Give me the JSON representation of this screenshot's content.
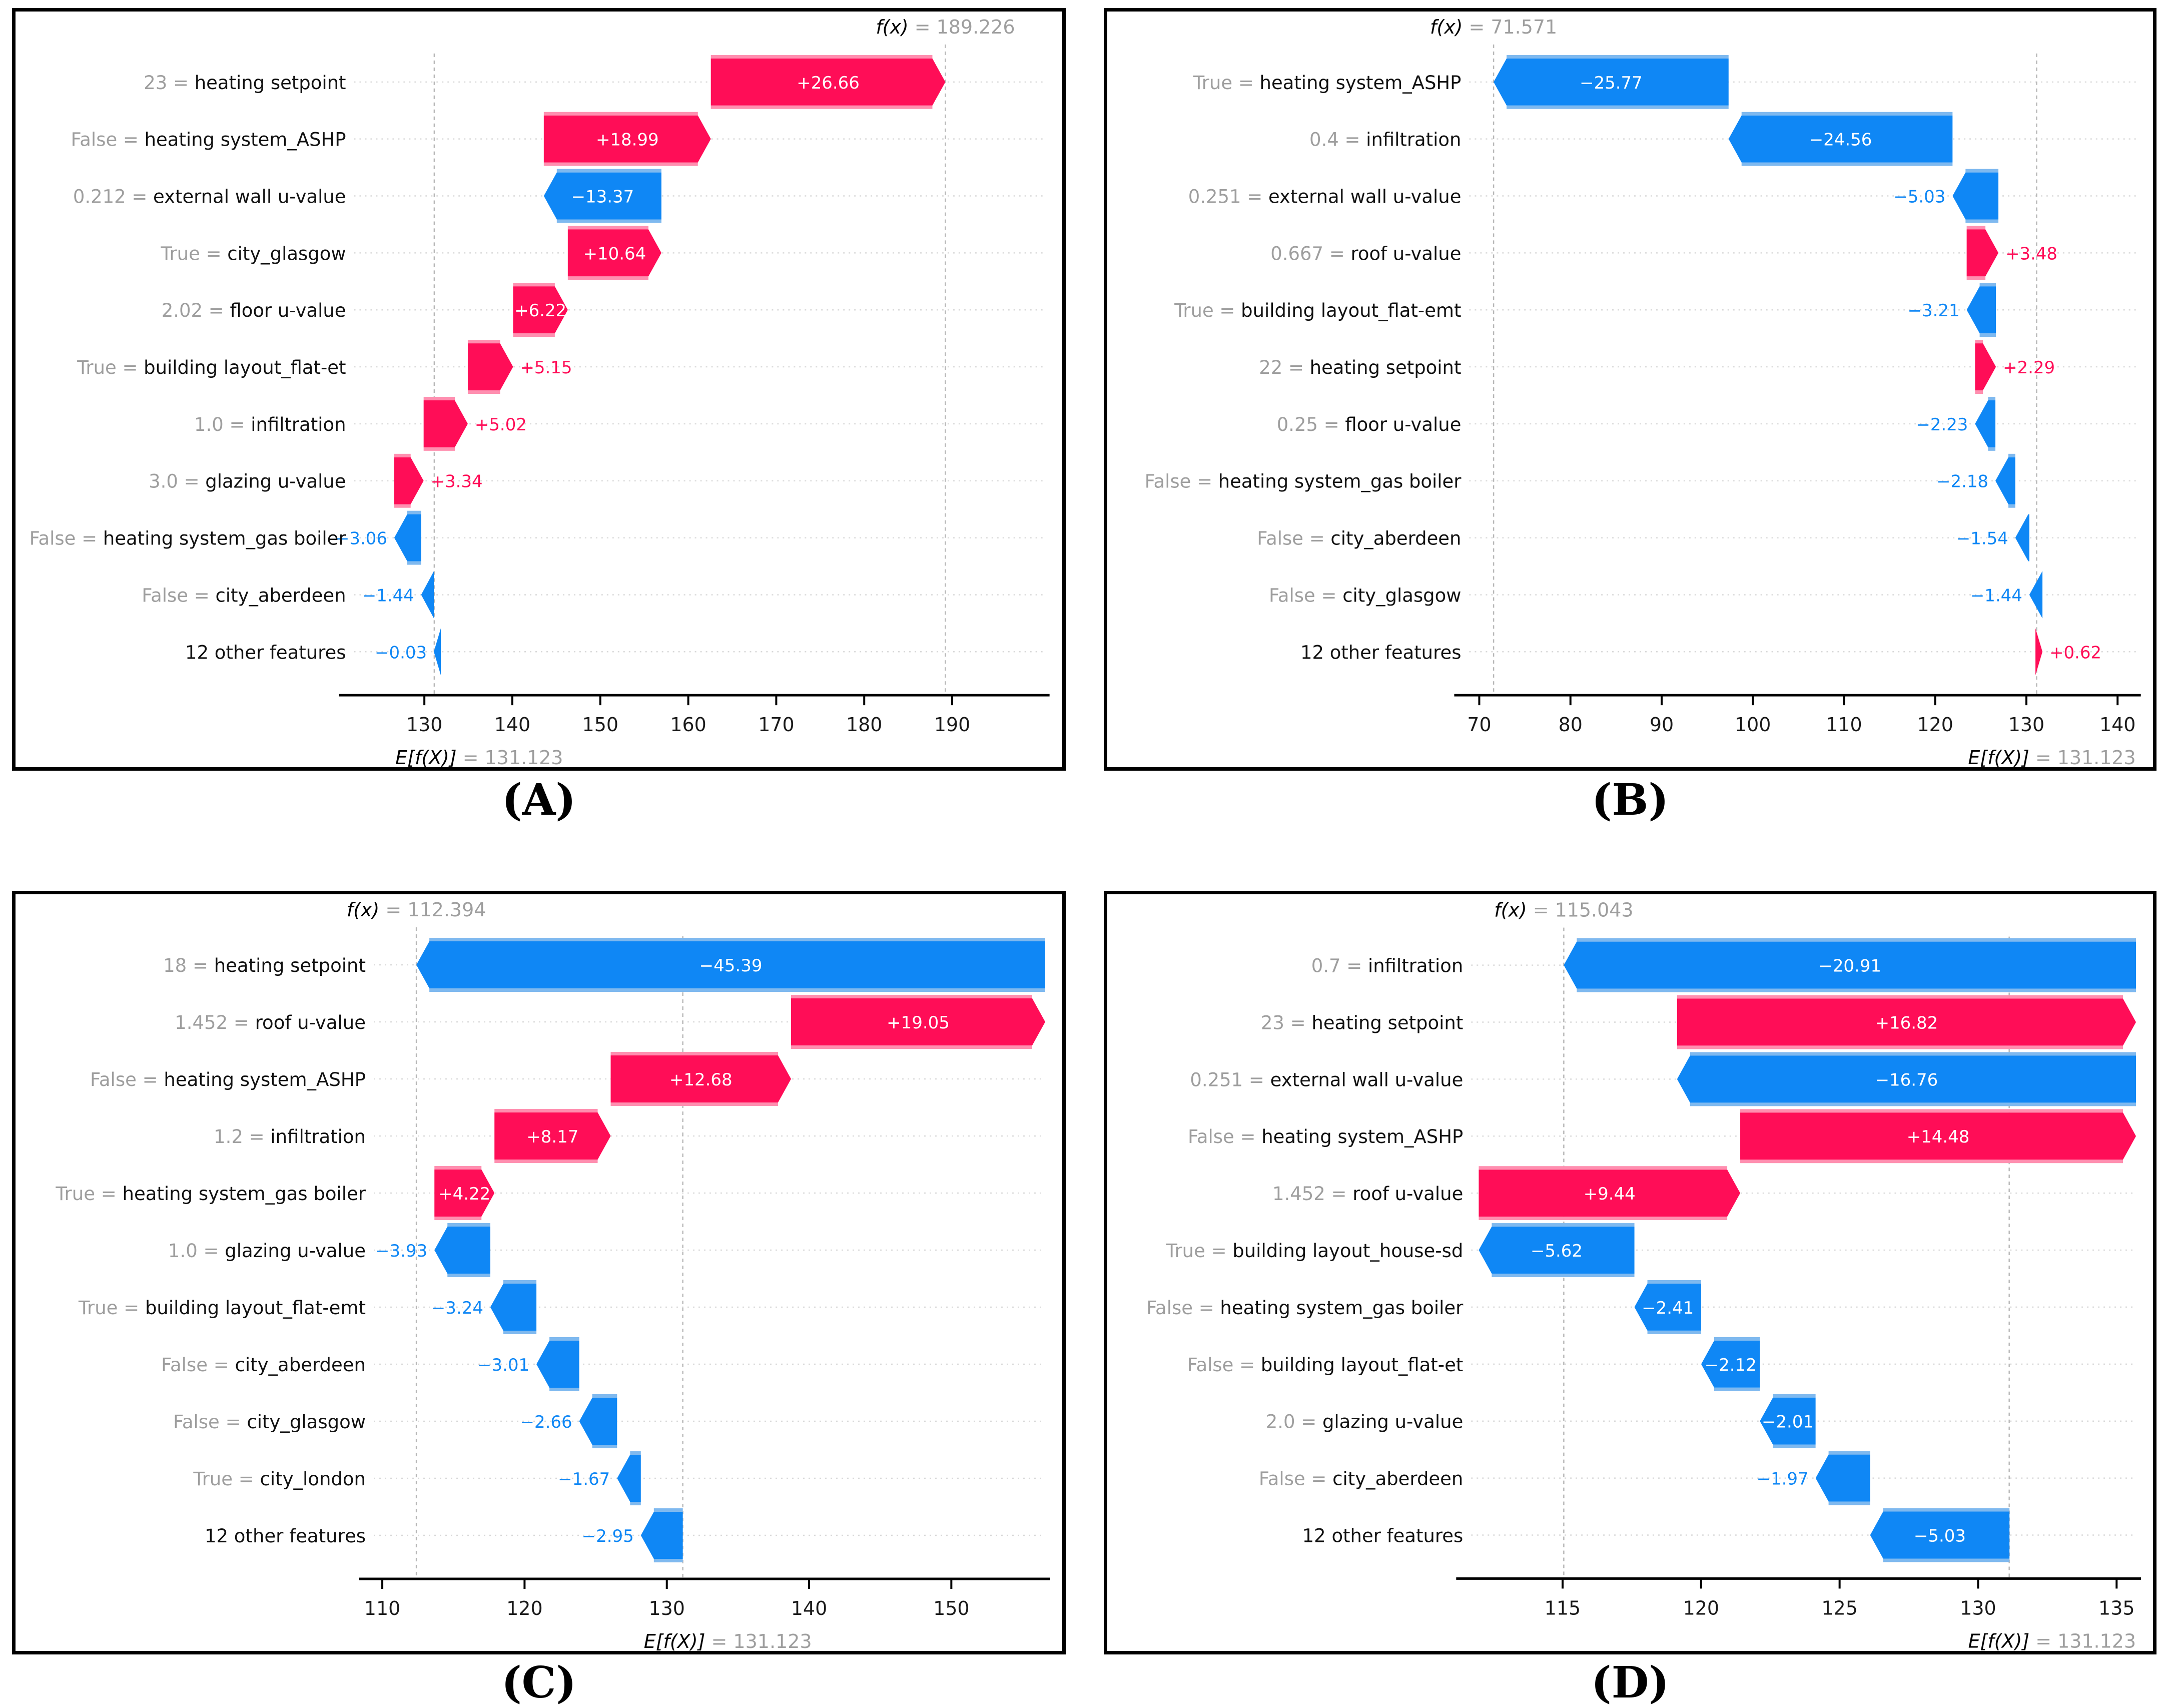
{
  "colors": {
    "positive": "#ff0d57",
    "negative": "#0f87f5",
    "positive_cap": "#ff8fb0",
    "negative_cap": "#7fb9ef",
    "grid": "#d9d9d9",
    "dash": "#b8b8b8",
    "muted": "#9e9e9e",
    "text": "#111111",
    "axis": "#000000",
    "inside_label": "#ffffff"
  },
  "chart_data": [
    {
      "type": "bar",
      "subtype": "shap-waterfall",
      "panel": "A",
      "caption": "(A)",
      "fx_text": "f(x)",
      "eq_text": " = ",
      "fx_value": "189.226",
      "fx": 189.226,
      "ef_text": "E[f(X)]",
      "ef_value": "131.123",
      "expected_value": 131.123,
      "x_ticks": [
        130,
        140,
        150,
        160,
        170,
        180,
        190
      ],
      "x_domain": [
        122,
        200.5
      ],
      "plot_left": 676,
      "ef_anchor": "line",
      "rows": [
        {
          "value": "23",
          "name": "heating setpoint",
          "shap": 26.66,
          "label": "+26.66",
          "inside": true
        },
        {
          "value": "False",
          "name": "heating system_ASHP",
          "shap": 18.99,
          "label": "+18.99",
          "inside": true
        },
        {
          "value": "0.212",
          "name": "external wall u-value",
          "shap": -13.37,
          "label": "−13.37",
          "inside": true
        },
        {
          "value": "True",
          "name": "city_glasgow",
          "shap": 10.64,
          "label": "+10.64",
          "inside": true
        },
        {
          "value": "2.02",
          "name": "floor u-value",
          "shap": 6.22,
          "label": "+6.22",
          "inside": true
        },
        {
          "value": "True",
          "name": "building layout_flat-et",
          "shap": 5.15,
          "label": "+5.15",
          "inside": false
        },
        {
          "value": "1.0",
          "name": "infiltration",
          "shap": 5.02,
          "label": "+5.02",
          "inside": false
        },
        {
          "value": "3.0",
          "name": "glazing u-value",
          "shap": 3.34,
          "label": "+3.34",
          "inside": false
        },
        {
          "value": "False",
          "name": "heating system_gas boiler",
          "shap": -3.06,
          "label": "−3.06",
          "inside": false
        },
        {
          "value": "False",
          "name": "city_aberdeen",
          "shap": -1.44,
          "label": "−1.44",
          "inside": false
        },
        {
          "value": null,
          "name": "12 other features",
          "shap": -0.03,
          "label": "−0.03",
          "inside": false
        }
      ]
    },
    {
      "type": "bar",
      "subtype": "shap-waterfall",
      "panel": "B",
      "caption": "(B)",
      "fx_text": "f(x)",
      "eq_text": " = ",
      "fx_value": "71.571",
      "fx": 71.571,
      "ef_text": "E[f(X)]",
      "ef_value": "131.123",
      "expected_value": 131.123,
      "x_ticks": [
        70,
        80,
        90,
        100,
        110,
        120,
        130,
        140
      ],
      "x_domain": [
        68.9,
        142
      ],
      "plot_left": 724,
      "ef_anchor": "right",
      "rows": [
        {
          "value": "True",
          "name": "heating system_ASHP",
          "shap": -25.77,
          "label": "−25.77",
          "inside": true
        },
        {
          "value": "0.4",
          "name": "infiltration",
          "shap": -24.56,
          "label": "−24.56",
          "inside": true
        },
        {
          "value": "0.251",
          "name": "external wall u-value",
          "shap": -5.03,
          "label": "−5.03",
          "inside": false
        },
        {
          "value": "0.667",
          "name": "roof u-value",
          "shap": 3.48,
          "label": "+3.48",
          "inside": false
        },
        {
          "value": "True",
          "name": "building layout_flat-emt",
          "shap": -3.21,
          "label": "−3.21",
          "inside": false
        },
        {
          "value": "22",
          "name": "heating setpoint",
          "shap": 2.29,
          "label": "+2.29",
          "inside": false
        },
        {
          "value": "0.25",
          "name": "floor u-value",
          "shap": -2.23,
          "label": "−2.23",
          "inside": false
        },
        {
          "value": "False",
          "name": "heating system_gas boiler",
          "shap": -2.18,
          "label": "−2.18",
          "inside": false
        },
        {
          "value": "False",
          "name": "city_aberdeen",
          "shap": -1.54,
          "label": "−1.54",
          "inside": false
        },
        {
          "value": "False",
          "name": "city_glasgow",
          "shap": -1.44,
          "label": "−1.44",
          "inside": false
        },
        {
          "value": null,
          "name": "12 other features",
          "shap": 0.62,
          "label": "+0.62",
          "inside": false
        }
      ]
    },
    {
      "type": "bar",
      "subtype": "shap-waterfall",
      "panel": "C",
      "caption": "(C)",
      "fx_text": "f(x)",
      "eq_text": " = ",
      "fx_value": "112.394",
      "fx": 112.394,
      "ef_text": "E[f(X)]",
      "ef_value": "131.123",
      "expected_value": 131.123,
      "x_ticks": [
        110,
        120,
        130,
        140,
        150
      ],
      "x_domain": [
        109.4,
        156.6
      ],
      "plot_left": 716,
      "ef_anchor": "line",
      "rows": [
        {
          "value": "18",
          "name": "heating setpoint",
          "shap": -45.39,
          "label": "−45.39",
          "inside": true
        },
        {
          "value": "1.452",
          "name": "roof u-value",
          "shap": 19.05,
          "label": "+19.05",
          "inside": true
        },
        {
          "value": "False",
          "name": "heating system_ASHP",
          "shap": 12.68,
          "label": "+12.68",
          "inside": true
        },
        {
          "value": "1.2",
          "name": "infiltration",
          "shap": 8.17,
          "label": "+8.17",
          "inside": true
        },
        {
          "value": "True",
          "name": "heating system_gas boiler",
          "shap": 4.22,
          "label": "+4.22",
          "inside": true
        },
        {
          "value": "1.0",
          "name": "glazing u-value",
          "shap": -3.93,
          "label": "−3.93",
          "inside": false
        },
        {
          "value": "True",
          "name": "building layout_flat-emt",
          "shap": -3.24,
          "label": "−3.24",
          "inside": false
        },
        {
          "value": "False",
          "name": "city_aberdeen",
          "shap": -3.01,
          "label": "−3.01",
          "inside": false
        },
        {
          "value": "False",
          "name": "city_glasgow",
          "shap": -2.66,
          "label": "−2.66",
          "inside": false
        },
        {
          "value": "True",
          "name": "city_london",
          "shap": -1.67,
          "label": "−1.67",
          "inside": false
        },
        {
          "value": null,
          "name": "12 other features",
          "shap": -2.95,
          "label": "−2.95",
          "inside": false
        }
      ]
    },
    {
      "type": "bar",
      "subtype": "shap-waterfall",
      "panel": "D",
      "caption": "(D)",
      "fx_text": "f(x)",
      "eq_text": " = ",
      "fx_value": "115.043",
      "fx": 115.043,
      "ef_text": "E[f(X)]",
      "ef_value": "131.123",
      "expected_value": 131.123,
      "x_ticks": [
        115,
        120,
        125,
        130,
        135
      ],
      "x_domain": [
        111.7,
        135.7
      ],
      "plot_left": 728,
      "ef_anchor": "right",
      "rows": [
        {
          "value": "0.7",
          "name": "infiltration",
          "shap": -20.91,
          "label": "−20.91",
          "inside": true
        },
        {
          "value": "23",
          "name": "heating setpoint",
          "shap": 16.82,
          "label": "+16.82",
          "inside": true
        },
        {
          "value": "0.251",
          "name": "external wall u-value",
          "shap": -16.76,
          "label": "−16.76",
          "inside": true
        },
        {
          "value": "False",
          "name": "heating system_ASHP",
          "shap": 14.48,
          "label": "+14.48",
          "inside": true
        },
        {
          "value": "1.452",
          "name": "roof u-value",
          "shap": 9.44,
          "label": "+9.44",
          "inside": true
        },
        {
          "value": "True",
          "name": "building layout_house-sd",
          "shap": -5.62,
          "label": "−5.62",
          "inside": true
        },
        {
          "value": "False",
          "name": "heating system_gas boiler",
          "shap": -2.41,
          "label": "−2.41",
          "inside": true
        },
        {
          "value": "False",
          "name": "building layout_flat-et",
          "shap": -2.12,
          "label": "−2.12",
          "inside": true
        },
        {
          "value": "2.0",
          "name": "glazing u-value",
          "shap": -2.01,
          "label": "−2.01",
          "inside": true
        },
        {
          "value": "False",
          "name": "city_aberdeen",
          "shap": -1.97,
          "label": "−1.97",
          "inside": false
        },
        {
          "value": null,
          "name": "12 other features",
          "shap": -5.03,
          "label": "−5.03",
          "inside": true
        }
      ]
    }
  ]
}
